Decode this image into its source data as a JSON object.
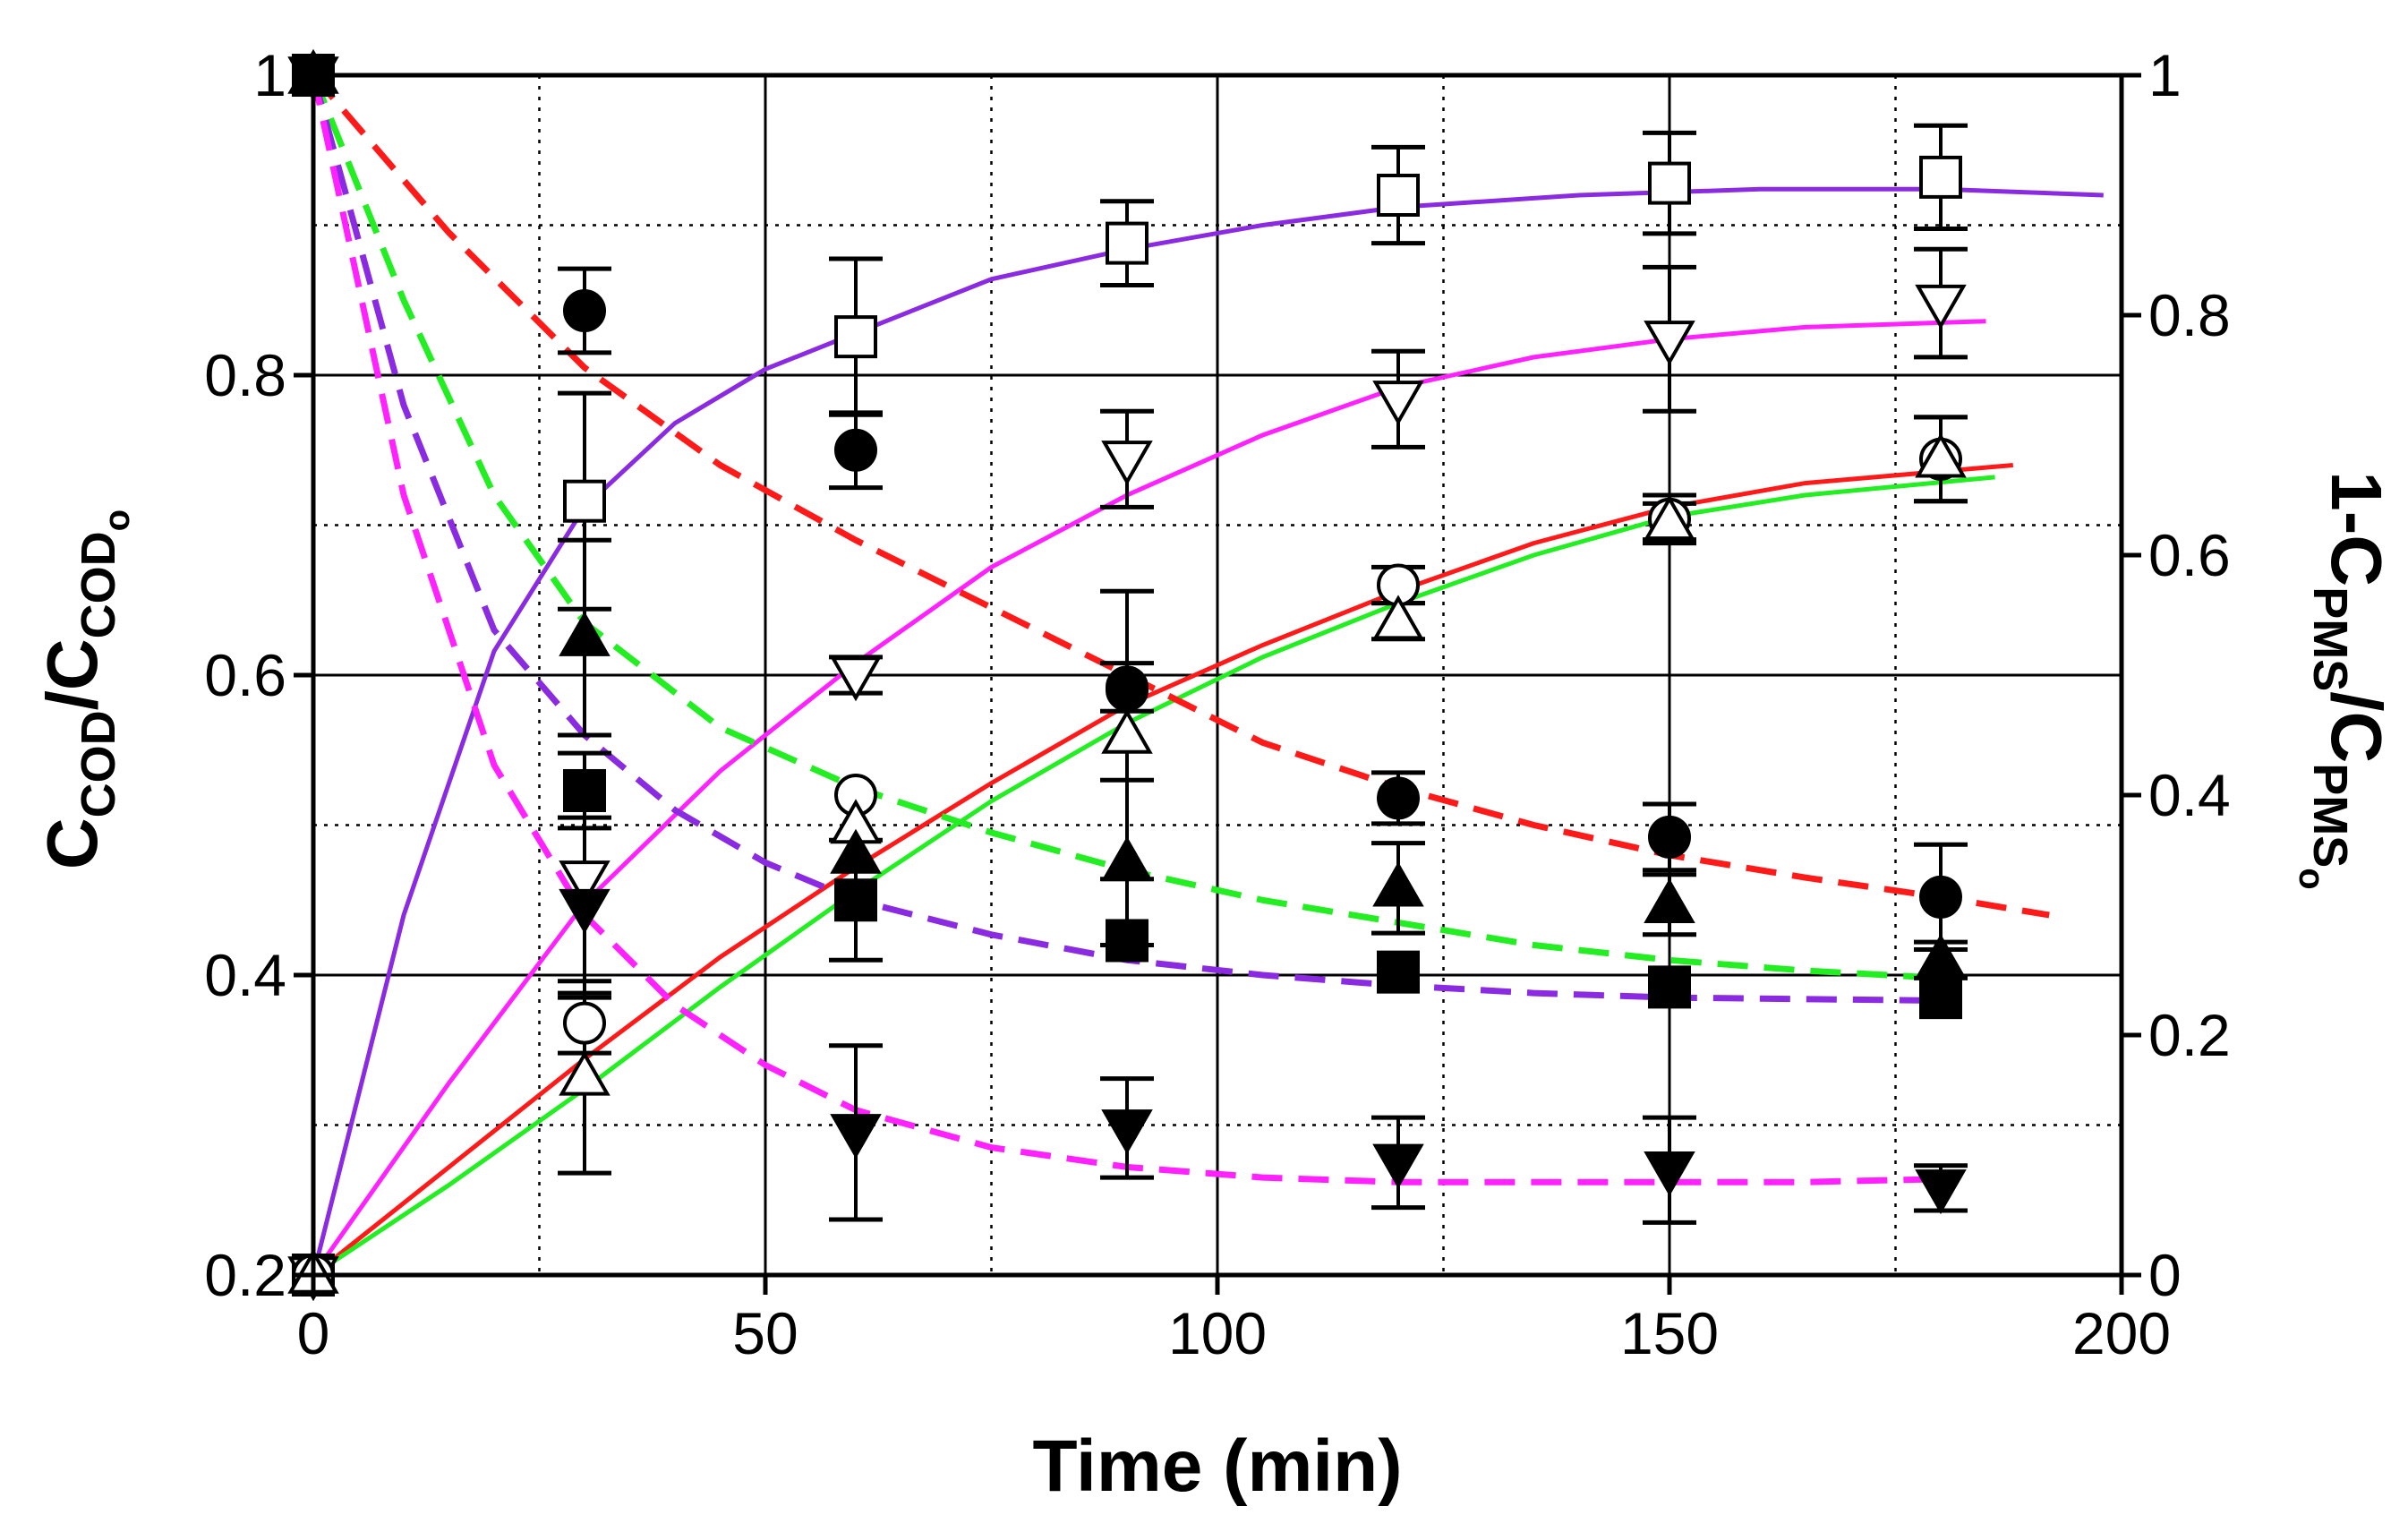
{
  "chart_data": {
    "type": "scatter",
    "xlabel": "Time (min)",
    "ylabel_left": {
      "main": "C",
      "sub1": "COD",
      "sep": "/C",
      "sub2": "COD",
      "subsub": "o"
    },
    "ylabel_right": {
      "main": "1-C",
      "sub1": "PMS",
      "sep": "/C",
      "sub2": "PMS",
      "subsub": "o"
    },
    "xlim": [
      0,
      200
    ],
    "ylim_left": [
      0.2,
      1.0
    ],
    "ylim_right": [
      0,
      1.0
    ],
    "x_ticks": [
      "0",
      "50",
      "100",
      "150",
      "200"
    ],
    "y_left_ticks": [
      "0.2",
      "0.4",
      "0.6",
      "0.8",
      "1"
    ],
    "y_right_ticks": [
      "0",
      "0.2",
      "0.4",
      "0.6",
      "0.8",
      "1"
    ],
    "grid": "major solid, minor dotted",
    "colors": {
      "red": "#ff1a1a",
      "green": "#22ee22",
      "purple": "#8a2be2",
      "magenta": "#ff22ff"
    },
    "series_left": [
      {
        "name": "COD filled circle",
        "marker": "circle",
        "fill": "filled",
        "axis": "left",
        "x": [
          0,
          30,
          60,
          90,
          120,
          150,
          180
        ],
        "y": [
          1.0,
          0.843,
          0.75,
          0.59,
          0.518,
          0.492,
          0.452
        ],
        "err": [
          0,
          0.028,
          0.025,
          0,
          0.017,
          0.022,
          0.035
        ]
      },
      {
        "name": "COD filled triangle up",
        "marker": "triangle-up",
        "fill": "filled",
        "axis": "left",
        "x": [
          0,
          30,
          60,
          90,
          120,
          150,
          180
        ],
        "y": [
          1.0,
          0.625,
          0.48,
          0.475,
          0.458,
          0.447,
          0.41
        ],
        "err": [
          0,
          0.065,
          0,
          0.055,
          0.03,
          0.02,
          0.012
        ]
      },
      {
        "name": "COD filled square",
        "marker": "square",
        "fill": "filled",
        "axis": "left",
        "x": [
          0,
          30,
          60,
          90,
          120,
          150,
          180
        ],
        "y": [
          1.0,
          0.523,
          0.45,
          0.423,
          0.402,
          0.392,
          0.385
        ],
        "err": [
          0,
          0.025,
          0.04,
          0,
          0,
          0,
          0
        ]
      },
      {
        "name": "COD filled triangle down",
        "marker": "triangle-down",
        "fill": "filled",
        "axis": "left",
        "x": [
          0,
          30,
          60,
          90,
          120,
          150,
          180
        ],
        "y": [
          1.0,
          0.445,
          0.295,
          0.298,
          0.275,
          0.27,
          0.258
        ],
        "err": [
          0,
          0.06,
          0.058,
          0.033,
          0.03,
          0.035,
          0.015
        ]
      }
    ],
    "series_right": [
      {
        "name": "PMS open square",
        "marker": "square",
        "fill": "open",
        "axis": "right",
        "x": [
          0,
          30,
          60,
          90,
          120,
          150,
          180
        ],
        "y": [
          0.0,
          0.645,
          0.782,
          0.86,
          0.9,
          0.91,
          0.915
        ],
        "err": [
          0,
          0.09,
          0.065,
          0.035,
          0.04,
          0.042,
          0.043
        ]
      },
      {
        "name": "PMS open triangle down",
        "marker": "triangle-down",
        "fill": "open",
        "axis": "right",
        "x": [
          0,
          30,
          60,
          90,
          120,
          150,
          180
        ],
        "y": [
          0.0,
          0.33,
          0.5,
          0.68,
          0.73,
          0.78,
          0.81
        ],
        "err": [
          0,
          0,
          0.015,
          0.04,
          0.04,
          0.06,
          0.045
        ]
      },
      {
        "name": "PMS open circle",
        "marker": "circle",
        "fill": "open",
        "axis": "right",
        "x": [
          0,
          30,
          60,
          90,
          120,
          150,
          180
        ],
        "y": [
          0.0,
          0.21,
          0.4,
          0.49,
          0.575,
          0.63,
          0.68
        ],
        "err": [
          0,
          0.025,
          0,
          0.02,
          0.015,
          0.02,
          0.035
        ]
      },
      {
        "name": "PMS open triangle up",
        "marker": "triangle-up",
        "fill": "open",
        "axis": "right",
        "x": [
          0,
          30,
          60,
          90,
          120,
          150,
          180
        ],
        "y": [
          0.0,
          0.165,
          0.375,
          0.45,
          0.545,
          0.628,
          0.68
        ],
        "err": [
          0,
          0.08,
          0,
          0.12,
          0.015,
          0.015,
          0.035
        ]
      }
    ],
    "fits_left_dashed": [
      {
        "color": "red",
        "x": [
          0,
          15,
          30,
          45,
          60,
          75,
          90,
          105,
          120,
          135,
          150,
          165,
          180,
          192
        ],
        "y": [
          1.0,
          0.895,
          0.805,
          0.74,
          0.69,
          0.645,
          0.6,
          0.555,
          0.525,
          0.5,
          0.48,
          0.465,
          0.452,
          0.44
        ]
      },
      {
        "color": "green",
        "x": [
          0,
          10,
          20,
          30,
          45,
          60,
          75,
          90,
          105,
          120,
          135,
          150,
          165,
          180
        ],
        "y": [
          1.0,
          0.85,
          0.72,
          0.635,
          0.565,
          0.525,
          0.495,
          0.47,
          0.45,
          0.435,
          0.42,
          0.41,
          0.403,
          0.398
        ]
      },
      {
        "color": "purple",
        "x": [
          0,
          10,
          20,
          30,
          40,
          50,
          60,
          75,
          90,
          105,
          120,
          135,
          150,
          165,
          180
        ],
        "y": [
          1.0,
          0.78,
          0.63,
          0.56,
          0.51,
          0.475,
          0.45,
          0.427,
          0.41,
          0.4,
          0.393,
          0.388,
          0.385,
          0.384,
          0.383
        ]
      },
      {
        "color": "magenta",
        "x": [
          0,
          10,
          20,
          30,
          40,
          50,
          60,
          75,
          90,
          105,
          120,
          135,
          150,
          165,
          180
        ],
        "y": [
          1.0,
          0.72,
          0.54,
          0.44,
          0.38,
          0.34,
          0.31,
          0.285,
          0.272,
          0.265,
          0.262,
          0.262,
          0.262,
          0.262,
          0.264
        ]
      }
    ],
    "fits_right_solid": [
      {
        "color": "purple",
        "x": [
          0,
          10,
          20,
          30,
          40,
          50,
          60,
          75,
          90,
          105,
          120,
          140,
          160,
          180,
          198
        ],
        "y": [
          0.0,
          0.3,
          0.52,
          0.64,
          0.71,
          0.755,
          0.785,
          0.83,
          0.855,
          0.875,
          0.89,
          0.9,
          0.905,
          0.905,
          0.9
        ]
      },
      {
        "color": "magenta",
        "x": [
          0,
          15,
          30,
          45,
          60,
          75,
          90,
          105,
          120,
          135,
          150,
          165,
          185
        ],
        "y": [
          0.0,
          0.16,
          0.31,
          0.42,
          0.51,
          0.59,
          0.65,
          0.7,
          0.74,
          0.765,
          0.78,
          0.79,
          0.795
        ]
      },
      {
        "color": "red",
        "x": [
          0,
          15,
          30,
          45,
          60,
          75,
          90,
          105,
          120,
          135,
          150,
          165,
          188
        ],
        "y": [
          0.0,
          0.09,
          0.18,
          0.265,
          0.34,
          0.41,
          0.475,
          0.525,
          0.57,
          0.61,
          0.64,
          0.66,
          0.675
        ]
      },
      {
        "color": "green",
        "x": [
          0,
          15,
          30,
          45,
          60,
          75,
          90,
          105,
          120,
          135,
          150,
          165,
          186
        ],
        "y": [
          0.0,
          0.075,
          0.155,
          0.24,
          0.32,
          0.395,
          0.46,
          0.515,
          0.56,
          0.6,
          0.632,
          0.65,
          0.665
        ]
      }
    ]
  }
}
